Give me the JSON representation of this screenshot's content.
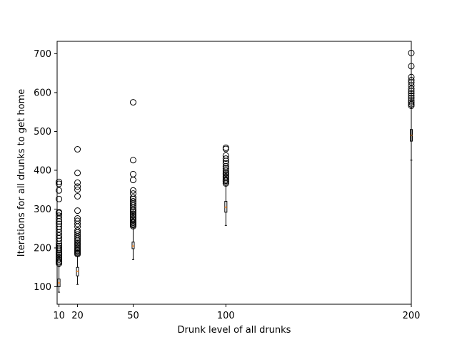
{
  "chart_data": {
    "type": "boxplot",
    "title": "",
    "xlabel": "Drunk level of all drunks",
    "ylabel": "Iterations for all drunks to get home",
    "xlim": [
      9,
      200
    ],
    "ylim": [
      55,
      732
    ],
    "x_ticks": [
      10,
      20,
      50,
      100,
      200
    ],
    "y_ticks": [
      100,
      200,
      300,
      400,
      500,
      600,
      700
    ],
    "grid": false,
    "colors": {
      "box": "#000000",
      "median": "#ff7f0e",
      "outlier": "#000000"
    },
    "boxes": [
      {
        "x": 10,
        "whisker_low": 86,
        "q1": 100,
        "median": 110,
        "q3": 120,
        "whisker_high": 152,
        "outliers": [
          160,
          163,
          166,
          170,
          174,
          178,
          182,
          186,
          190,
          195,
          200,
          205,
          210,
          218,
          225,
          232,
          240,
          248,
          255,
          262,
          268,
          275,
          283,
          290,
          292,
          326,
          348,
          365,
          370
        ]
      },
      {
        "x": 20,
        "whisker_low": 106,
        "q1": 128,
        "median": 140,
        "q3": 150,
        "whisker_high": 180,
        "outliers": [
          184,
          187,
          190,
          193,
          196,
          200,
          204,
          208,
          212,
          216,
          220,
          225,
          230,
          235,
          240,
          245,
          255,
          262,
          270,
          276,
          296,
          333,
          350,
          358,
          368,
          393,
          454
        ]
      },
      {
        "x": 50,
        "whisker_low": 170,
        "q1": 198,
        "median": 205,
        "q3": 215,
        "whisker_high": 252,
        "outliers": [
          256,
          259,
          262,
          265,
          268,
          272,
          276,
          280,
          284,
          288,
          292,
          296,
          300,
          305,
          310,
          315,
          320,
          326,
          330,
          340,
          348,
          375,
          390,
          426,
          575
        ]
      },
      {
        "x": 100,
        "whisker_low": 258,
        "q1": 292,
        "median": 305,
        "q3": 320,
        "whisker_high": 360,
        "outliers": [
          366,
          370,
          373,
          376,
          380,
          384,
          388,
          392,
          396,
          400,
          405,
          410,
          418,
          424,
          430,
          438,
          455,
          458
        ]
      },
      {
        "x": 200,
        "whisker_low": 426,
        "q1": 475,
        "median": 490,
        "q3": 505,
        "whisker_high": 560,
        "outliers": [
          566,
          570,
          575,
          580,
          586,
          592,
          598,
          604,
          610,
          618,
          626,
          632,
          640,
          668,
          702
        ]
      }
    ]
  }
}
